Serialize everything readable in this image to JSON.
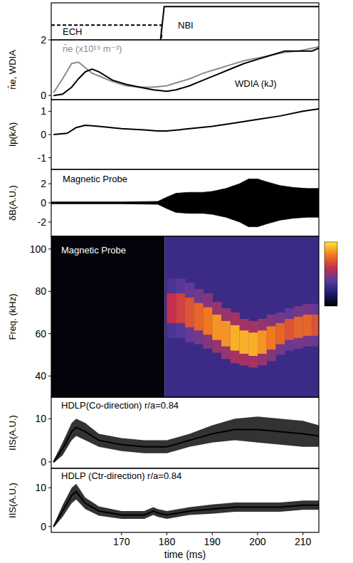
{
  "chart_data": [
    {
      "type": "line",
      "xlim": [
        154.5,
        213.5
      ],
      "ylim": [
        0,
        1
      ],
      "tick_labels": false,
      "series": [
        {
          "name": "ECH",
          "color": "#000000",
          "line_style": "dashed",
          "x": [
            154.5,
            178.8,
            178.8
          ],
          "values": [
            0.4,
            0.4,
            0
          ]
        },
        {
          "name": "NBI",
          "color": "#000000",
          "line_style": "solid",
          "x": [
            178.6,
            179.4,
            213.5
          ],
          "values": [
            0,
            0.9,
            0.9
          ]
        }
      ]
    },
    {
      "type": "line",
      "xlim": [
        154.5,
        213.5
      ],
      "ylim": [
        -0.15,
        2.0
      ],
      "yticks": [
        0,
        2
      ],
      "tick_labels": "y",
      "ylabel": "n̄e, WDIA",
      "x": [
        155,
        157,
        159,
        160.5,
        162,
        163.5,
        165,
        168,
        171,
        174,
        177,
        180,
        182,
        185,
        188,
        191,
        194,
        197,
        200,
        203,
        206,
        209,
        212,
        213.5
      ],
      "series": [
        {
          "name": "n̄e (x10¹⁹ m⁻³)",
          "color": "#8a8a8a",
          "line_style": "solid",
          "values": [
            0.1,
            0.6,
            1.15,
            1.2,
            1.0,
            0.8,
            0.7,
            0.5,
            0.35,
            0.3,
            0.3,
            0.35,
            0.45,
            0.6,
            0.8,
            0.95,
            1.1,
            1.25,
            1.35,
            1.45,
            1.55,
            1.6,
            1.7,
            1.75
          ]
        },
        {
          "name": "WDIA (kJ)",
          "color": "#000000",
          "line_style": "solid",
          "values": [
            0.0,
            0.05,
            0.3,
            0.6,
            0.85,
            0.95,
            0.85,
            0.55,
            0.4,
            0.3,
            0.2,
            0.15,
            0.2,
            0.35,
            0.55,
            0.75,
            0.95,
            1.15,
            1.3,
            1.45,
            1.6,
            1.6,
            1.6,
            1.7
          ]
        }
      ]
    },
    {
      "type": "line",
      "xlim": [
        154.5,
        213.5
      ],
      "ylim": [
        -1.5,
        1.5
      ],
      "yticks": [
        -1,
        0,
        1
      ],
      "tick_labels": "y",
      "ylabel": "Ip(kA)",
      "x": [
        155,
        158,
        160,
        162,
        165,
        170,
        175,
        178,
        180,
        185,
        190,
        195,
        200,
        205,
        210,
        213.5
      ],
      "series": [
        {
          "color": "#000000",
          "line_style": "solid",
          "values": [
            0,
            0.05,
            0.3,
            0.4,
            0.35,
            0.25,
            0.2,
            0.15,
            0.15,
            0.25,
            0.35,
            0.5,
            0.65,
            0.8,
            1.0,
            1.1
          ]
        }
      ]
    },
    {
      "type": "area",
      "xlim": [
        154.5,
        213.5
      ],
      "ylim": [
        -3.5,
        3.5
      ],
      "yticks": [
        -2,
        0,
        2
      ],
      "tick_labels": "y",
      "ylabel": "δB(A.U.)",
      "annotation": "Magnetic Probe",
      "color": "#000000",
      "x": [
        154.5,
        170,
        178,
        180,
        182,
        185,
        188,
        190,
        193,
        196,
        198,
        200,
        202,
        205,
        208,
        211,
        213.5
      ],
      "upper": [
        0.1,
        0.1,
        0.15,
        0.6,
        1.0,
        1.1,
        1.1,
        1.2,
        1.5,
        2.0,
        2.5,
        2.5,
        2.2,
        1.8,
        1.6,
        1.5,
        1.5
      ],
      "lower": [
        -0.1,
        -0.1,
        -0.15,
        -0.6,
        -1.0,
        -1.1,
        -1.1,
        -1.2,
        -1.5,
        -2.0,
        -2.5,
        -2.5,
        -2.2,
        -1.8,
        -1.6,
        -1.5,
        -1.5
      ]
    },
    {
      "type": "heatmap",
      "xlim": [
        154.5,
        213.5
      ],
      "ylim": [
        30,
        106
      ],
      "yticks": [
        40,
        60,
        80,
        100
      ],
      "tick_labels": "y",
      "ylabel": "Freq. (kHz)",
      "annotation": "Magnetic Probe",
      "background": {
        "x": [
          154.5,
          179.5,
          213.5
        ],
        "intensity": [
          0.02,
          0.3
        ]
      },
      "x": [
        180,
        182,
        184,
        186,
        188,
        190,
        192,
        194,
        196,
        198,
        200,
        202,
        204,
        206,
        208,
        210,
        212
      ],
      "values": [
        72,
        72,
        70,
        68,
        66,
        63,
        60,
        58,
        56,
        55,
        56,
        58,
        60,
        62,
        63,
        64,
        64
      ],
      "width": [
        14,
        14,
        14,
        13,
        13,
        12,
        12,
        12,
        11,
        11,
        11,
        11,
        10,
        10,
        10,
        10,
        10
      ],
      "intensity": [
        0.6,
        0.65,
        0.7,
        0.75,
        0.8,
        0.85,
        0.85,
        0.9,
        0.9,
        0.9,
        0.85,
        0.8,
        0.75,
        0.7,
        0.75,
        0.75,
        0.7
      ],
      "colorbar": {
        "range": [
          0,
          1
        ],
        "colors": [
          "#000000",
          "#1c1c72",
          "#5a3a9c",
          "#c4304c",
          "#f07820",
          "#ffe836"
        ]
      }
    },
    {
      "type": "line",
      "xlim": [
        154.5,
        213.5
      ],
      "ylim": [
        -1.5,
        15
      ],
      "yticks": [
        0,
        10
      ],
      "tick_labels": "y",
      "ylabel": "IIS(A.U.)",
      "title": "HDLP(Co-direction) r/a=0.84",
      "x": [
        155,
        157,
        159,
        160,
        162,
        165,
        170,
        175,
        180,
        185,
        190,
        195,
        200,
        205,
        210,
        213.5
      ],
      "series": [
        {
          "color": "#000000",
          "line_style": "solid",
          "values": [
            0,
            3,
            7,
            8,
            7,
            5,
            4,
            3.5,
            3.5,
            5,
            6.5,
            7.5,
            7.5,
            7,
            6.5,
            6
          ],
          "noise": [
            0.3,
            1.5,
            2,
            2,
            2,
            1.5,
            1.5,
            1.5,
            1.5,
            1.5,
            2,
            2.5,
            3,
            3,
            3,
            2.5
          ]
        }
      ]
    },
    {
      "type": "line",
      "xlim": [
        154.5,
        213.5
      ],
      "ylim": [
        -1.5,
        15
      ],
      "yticks": [
        0,
        10
      ],
      "xticks": [
        170,
        180,
        190,
        200,
        210
      ],
      "ylabel": "IIS(A.U.)",
      "xlabel": "time (ms)",
      "title": "HDLP (Ctr-direction) r/a=0.84",
      "x": [
        155,
        157,
        159,
        160,
        162,
        165,
        170,
        175,
        177,
        178,
        180,
        185,
        190,
        195,
        200,
        205,
        210,
        213.5
      ],
      "series": [
        {
          "color": "#000000",
          "line_style": "solid",
          "values": [
            0,
            4,
            8,
            9,
            6,
            4,
            3,
            3,
            4,
            3.5,
            3,
            4,
            4.5,
            5,
            5,
            5,
            5.5,
            5.5
          ],
          "noise": [
            0.3,
            1.5,
            2,
            2,
            1.5,
            1.2,
            1,
            1,
            1,
            1,
            1,
            1,
            1.2,
            1.2,
            1.2,
            1.2,
            1.2,
            1.2
          ]
        }
      ]
    }
  ]
}
